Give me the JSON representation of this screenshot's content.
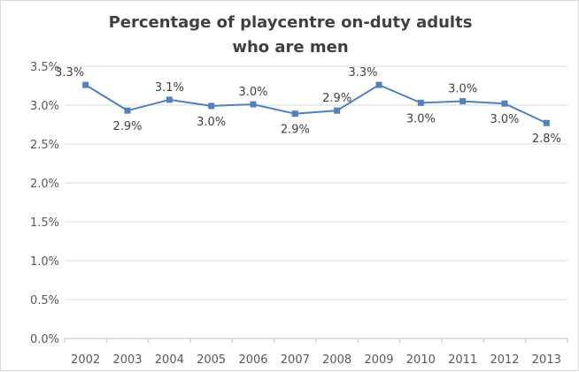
{
  "chart_data": {
    "type": "line",
    "title": [
      "Percentage of playcentre on-duty adults",
      "who are men"
    ],
    "categories": [
      "2002",
      "2003",
      "2004",
      "2005",
      "2006",
      "2007",
      "2008",
      "2009",
      "2010",
      "2011",
      "2012",
      "2013"
    ],
    "series": [
      {
        "values": [
          3.26,
          2.93,
          3.07,
          2.99,
          3.01,
          2.89,
          2.93,
          3.26,
          3.03,
          3.05,
          3.02,
          2.77
        ],
        "labels": [
          "3.3%",
          "2.9%",
          "3.1%",
          "3.0%",
          "3.0%",
          "2.9%",
          "2.9%",
          "3.3%",
          "3.0%",
          "3.0%",
          "3.0%",
          "2.8%"
        ],
        "color": "#4f81bd"
      }
    ],
    "y_ticks": [
      "0.0%",
      "0.5%",
      "1.0%",
      "1.5%",
      "2.0%",
      "2.5%",
      "3.0%",
      "3.5%"
    ],
    "ylim": [
      0,
      3.5
    ],
    "grid": true,
    "legend": "none"
  }
}
